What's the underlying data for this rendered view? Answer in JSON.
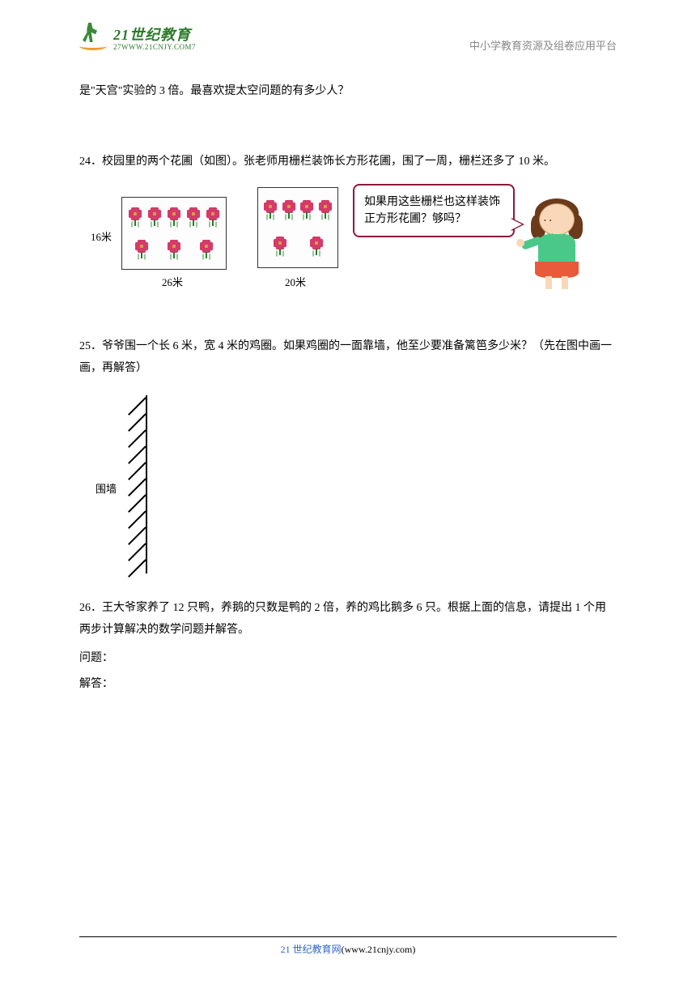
{
  "header": {
    "logo_main": "21世纪教育",
    "logo_url": "27WWW.21CNJY.COM7",
    "right_text": "中小学教育资源及组卷应用平台"
  },
  "q23_tail": "是\"天宫\"实验的 3 倍。最喜欢提太空问题的有多少人？",
  "q24": {
    "text": "24．校园里的两个花圃（如图）。张老师用栅栏装饰长方形花圃，围了一周，栅栏还多了 10 米。",
    "dim_16": "16米",
    "dim_26": "26米",
    "dim_20": "20米",
    "speech": "如果用这些栅栏也这样装饰正方形花圃？够吗？",
    "flower_count_rect": 8,
    "flower_count_square": 6,
    "colors": {
      "border": "#333333",
      "flower_petal": "#d43a6a",
      "flower_center": "#d4a040",
      "stem": "#2a7a2a",
      "bubble_border": "#8a1a3a",
      "char_skin": "#f8d8b8",
      "char_hair": "#6a3a1a",
      "char_top": "#4ac88a",
      "char_skirt": "#e85a3a"
    }
  },
  "q25": {
    "text": "25．爷爷围一个长 6 米，宽 4 米的鸡圈。如果鸡圈的一面靠墙，他至少要准备篱笆多少米？（先在图中画一画，再解答）",
    "wall_label": "围墙",
    "hatch_count": 11
  },
  "q26": {
    "text": "26．王大爷家养了 12 只鸭，养鹅的只数是鸭的 2 倍，养的鸡比鹅多 6 只。根据上面的信息，请提出 1 个用两步计算解决的数学问题并解答。",
    "wenti": "问题：",
    "jieda": "解答："
  },
  "footer": {
    "brand": "21 世纪教育网",
    "url": "(www.21cnjy.com)"
  }
}
